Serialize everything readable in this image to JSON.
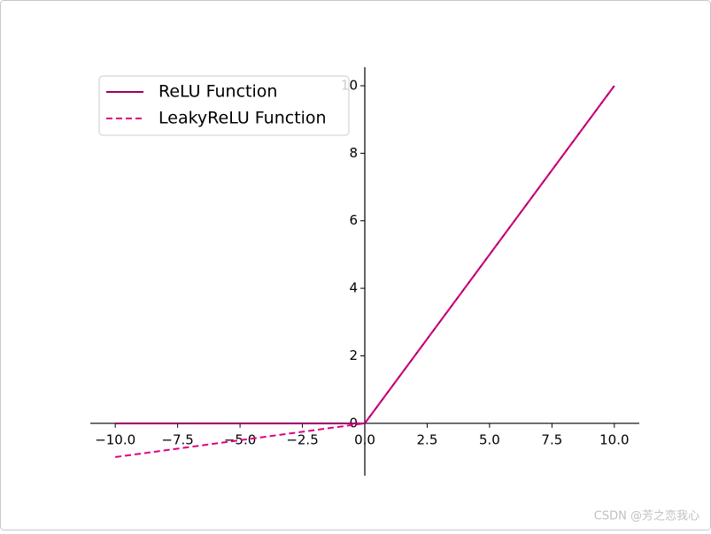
{
  "chart_data": {
    "type": "line",
    "x": [
      -10,
      0,
      10
    ],
    "series": [
      {
        "name": "ReLU Function",
        "color": "#990066",
        "dash": false,
        "values": [
          0,
          0,
          10
        ]
      },
      {
        "name": "LeakyReLU Function",
        "color": "#e0007f",
        "dash": true,
        "values": [
          -1,
          0,
          10
        ]
      }
    ],
    "xlim": [
      -11,
      11
    ],
    "ylim": [
      -1.55,
      10.55
    ],
    "xticks": [
      {
        "value": -10,
        "label": "−10.0"
      },
      {
        "value": -7.5,
        "label": "−7.5"
      },
      {
        "value": -5,
        "label": "−5.0"
      },
      {
        "value": -2.5,
        "label": "−2.5"
      },
      {
        "value": 0,
        "label": "0.0"
      },
      2.5,
      {
        "value": 5,
        "label": "5.0"
      },
      7.5,
      {
        "value": 10,
        "label": "10.0"
      }
    ],
    "yticks": [
      0,
      2,
      4,
      6,
      8,
      10
    ],
    "legend": "upper left",
    "watermark": "CSDN @芳之恋我心"
  }
}
